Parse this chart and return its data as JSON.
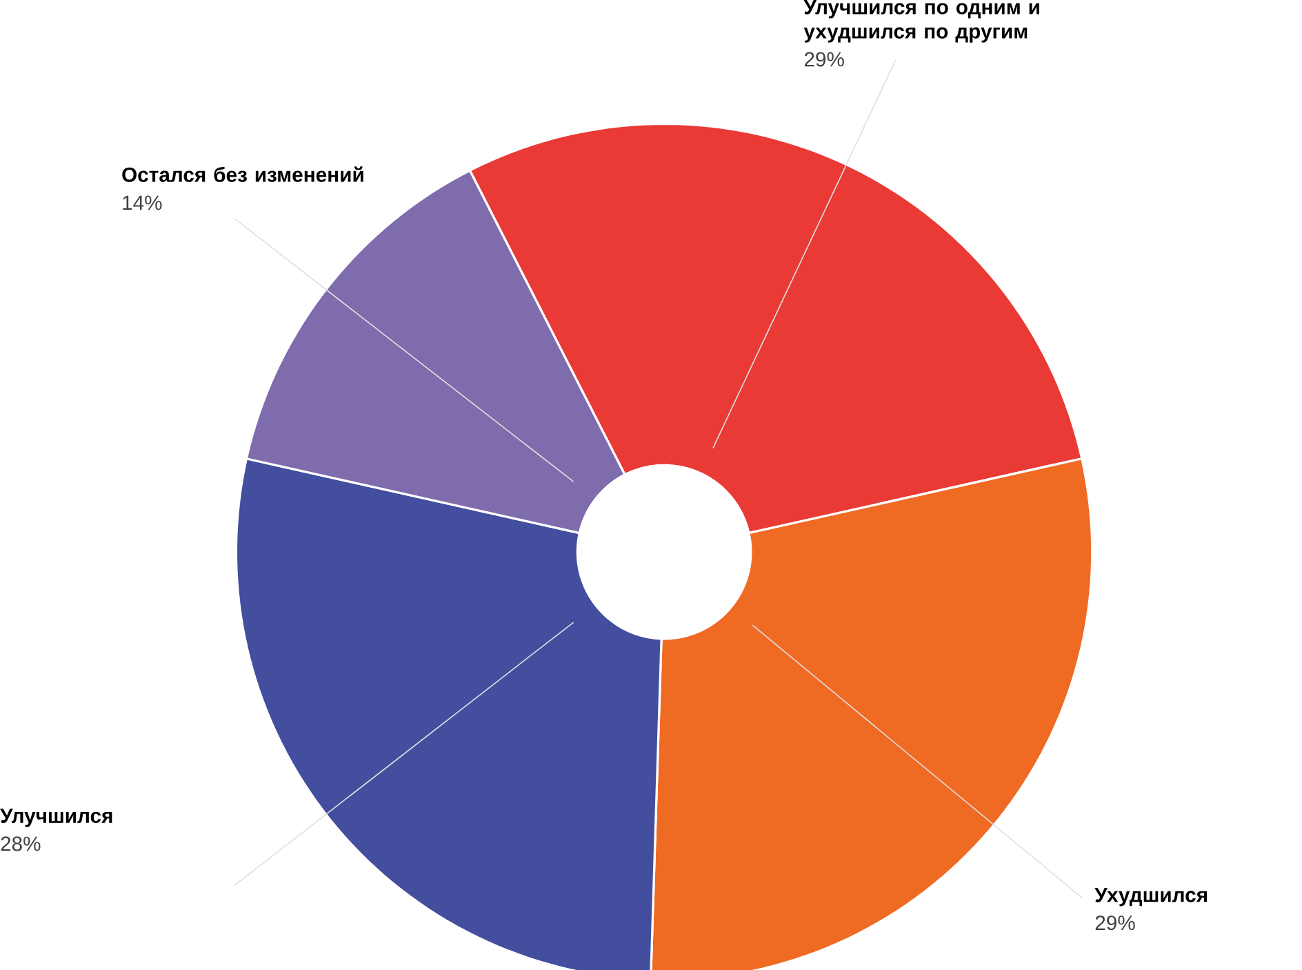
{
  "chart_data": {
    "type": "donut",
    "categories": [
      "Улучшился по одним и ухудшился по другим",
      "Ухудшился",
      "Улучшился",
      "Остался без изменений"
    ],
    "values": [
      29,
      29,
      28,
      14
    ],
    "value_labels": [
      "29%",
      "29%",
      "28%",
      "14%"
    ],
    "colors": [
      "#e93a35",
      "#ef6a23",
      "#444e9e",
      "#7f6cad"
    ]
  }
}
